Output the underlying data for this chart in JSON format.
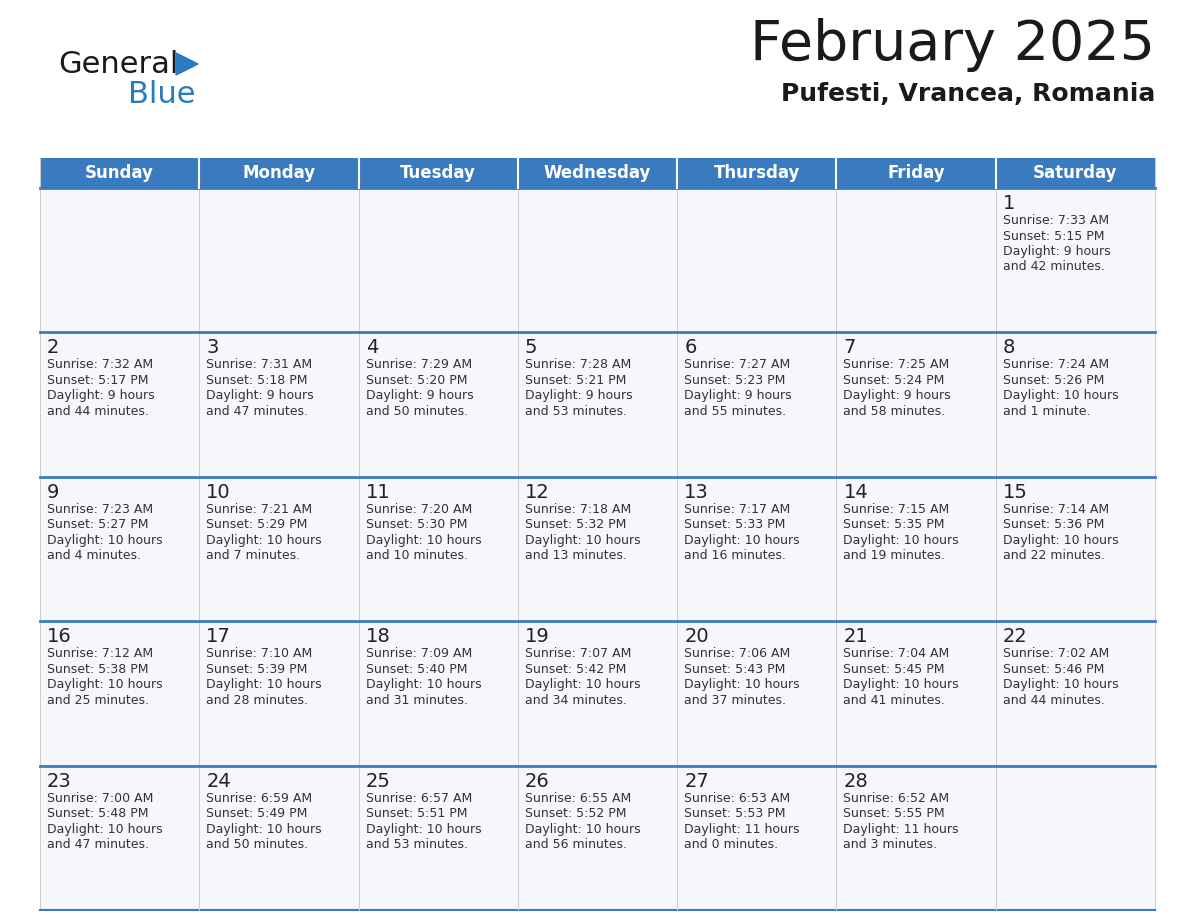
{
  "title": "February 2025",
  "subtitle": "Pufesti, Vrancea, Romania",
  "header_color": "#3a7abf",
  "header_text_color": "#ffffff",
  "cell_bg": "#f5f7fa",
  "text_color": "#333333",
  "day_headers": [
    "Sunday",
    "Monday",
    "Tuesday",
    "Wednesday",
    "Thursday",
    "Friday",
    "Saturday"
  ],
  "weeks": [
    [
      {
        "day": null,
        "sunrise": null,
        "sunset": null,
        "daylight_line1": null,
        "daylight_line2": null
      },
      {
        "day": null,
        "sunrise": null,
        "sunset": null,
        "daylight_line1": null,
        "daylight_line2": null
      },
      {
        "day": null,
        "sunrise": null,
        "sunset": null,
        "daylight_line1": null,
        "daylight_line2": null
      },
      {
        "day": null,
        "sunrise": null,
        "sunset": null,
        "daylight_line1": null,
        "daylight_line2": null
      },
      {
        "day": null,
        "sunrise": null,
        "sunset": null,
        "daylight_line1": null,
        "daylight_line2": null
      },
      {
        "day": null,
        "sunrise": null,
        "sunset": null,
        "daylight_line1": null,
        "daylight_line2": null
      },
      {
        "day": 1,
        "sunrise": "7:33 AM",
        "sunset": "5:15 PM",
        "daylight_line1": "Daylight: 9 hours",
        "daylight_line2": "and 42 minutes."
      }
    ],
    [
      {
        "day": 2,
        "sunrise": "7:32 AM",
        "sunset": "5:17 PM",
        "daylight_line1": "Daylight: 9 hours",
        "daylight_line2": "and 44 minutes."
      },
      {
        "day": 3,
        "sunrise": "7:31 AM",
        "sunset": "5:18 PM",
        "daylight_line1": "Daylight: 9 hours",
        "daylight_line2": "and 47 minutes."
      },
      {
        "day": 4,
        "sunrise": "7:29 AM",
        "sunset": "5:20 PM",
        "daylight_line1": "Daylight: 9 hours",
        "daylight_line2": "and 50 minutes."
      },
      {
        "day": 5,
        "sunrise": "7:28 AM",
        "sunset": "5:21 PM",
        "daylight_line1": "Daylight: 9 hours",
        "daylight_line2": "and 53 minutes."
      },
      {
        "day": 6,
        "sunrise": "7:27 AM",
        "sunset": "5:23 PM",
        "daylight_line1": "Daylight: 9 hours",
        "daylight_line2": "and 55 minutes."
      },
      {
        "day": 7,
        "sunrise": "7:25 AM",
        "sunset": "5:24 PM",
        "daylight_line1": "Daylight: 9 hours",
        "daylight_line2": "and 58 minutes."
      },
      {
        "day": 8,
        "sunrise": "7:24 AM",
        "sunset": "5:26 PM",
        "daylight_line1": "Daylight: 10 hours",
        "daylight_line2": "and 1 minute."
      }
    ],
    [
      {
        "day": 9,
        "sunrise": "7:23 AM",
        "sunset": "5:27 PM",
        "daylight_line1": "Daylight: 10 hours",
        "daylight_line2": "and 4 minutes."
      },
      {
        "day": 10,
        "sunrise": "7:21 AM",
        "sunset": "5:29 PM",
        "daylight_line1": "Daylight: 10 hours",
        "daylight_line2": "and 7 minutes."
      },
      {
        "day": 11,
        "sunrise": "7:20 AM",
        "sunset": "5:30 PM",
        "daylight_line1": "Daylight: 10 hours",
        "daylight_line2": "and 10 minutes."
      },
      {
        "day": 12,
        "sunrise": "7:18 AM",
        "sunset": "5:32 PM",
        "daylight_line1": "Daylight: 10 hours",
        "daylight_line2": "and 13 minutes."
      },
      {
        "day": 13,
        "sunrise": "7:17 AM",
        "sunset": "5:33 PM",
        "daylight_line1": "Daylight: 10 hours",
        "daylight_line2": "and 16 minutes."
      },
      {
        "day": 14,
        "sunrise": "7:15 AM",
        "sunset": "5:35 PM",
        "daylight_line1": "Daylight: 10 hours",
        "daylight_line2": "and 19 minutes."
      },
      {
        "day": 15,
        "sunrise": "7:14 AM",
        "sunset": "5:36 PM",
        "daylight_line1": "Daylight: 10 hours",
        "daylight_line2": "and 22 minutes."
      }
    ],
    [
      {
        "day": 16,
        "sunrise": "7:12 AM",
        "sunset": "5:38 PM",
        "daylight_line1": "Daylight: 10 hours",
        "daylight_line2": "and 25 minutes."
      },
      {
        "day": 17,
        "sunrise": "7:10 AM",
        "sunset": "5:39 PM",
        "daylight_line1": "Daylight: 10 hours",
        "daylight_line2": "and 28 minutes."
      },
      {
        "day": 18,
        "sunrise": "7:09 AM",
        "sunset": "5:40 PM",
        "daylight_line1": "Daylight: 10 hours",
        "daylight_line2": "and 31 minutes."
      },
      {
        "day": 19,
        "sunrise": "7:07 AM",
        "sunset": "5:42 PM",
        "daylight_line1": "Daylight: 10 hours",
        "daylight_line2": "and 34 minutes."
      },
      {
        "day": 20,
        "sunrise": "7:06 AM",
        "sunset": "5:43 PM",
        "daylight_line1": "Daylight: 10 hours",
        "daylight_line2": "and 37 minutes."
      },
      {
        "day": 21,
        "sunrise": "7:04 AM",
        "sunset": "5:45 PM",
        "daylight_line1": "Daylight: 10 hours",
        "daylight_line2": "and 41 minutes."
      },
      {
        "day": 22,
        "sunrise": "7:02 AM",
        "sunset": "5:46 PM",
        "daylight_line1": "Daylight: 10 hours",
        "daylight_line2": "and 44 minutes."
      }
    ],
    [
      {
        "day": 23,
        "sunrise": "7:00 AM",
        "sunset": "5:48 PM",
        "daylight_line1": "Daylight: 10 hours",
        "daylight_line2": "and 47 minutes."
      },
      {
        "day": 24,
        "sunrise": "6:59 AM",
        "sunset": "5:49 PM",
        "daylight_line1": "Daylight: 10 hours",
        "daylight_line2": "and 50 minutes."
      },
      {
        "day": 25,
        "sunrise": "6:57 AM",
        "sunset": "5:51 PM",
        "daylight_line1": "Daylight: 10 hours",
        "daylight_line2": "and 53 minutes."
      },
      {
        "day": 26,
        "sunrise": "6:55 AM",
        "sunset": "5:52 PM",
        "daylight_line1": "Daylight: 10 hours",
        "daylight_line2": "and 56 minutes."
      },
      {
        "day": 27,
        "sunrise": "6:53 AM",
        "sunset": "5:53 PM",
        "daylight_line1": "Daylight: 11 hours",
        "daylight_line2": "and 0 minutes."
      },
      {
        "day": 28,
        "sunrise": "6:52 AM",
        "sunset": "5:55 PM",
        "daylight_line1": "Daylight: 11 hours",
        "daylight_line2": "and 3 minutes."
      },
      {
        "day": null,
        "sunrise": null,
        "sunset": null,
        "daylight_line1": null,
        "daylight_line2": null
      }
    ]
  ],
  "logo_general_color": "#1a1a1a",
  "logo_blue_color": "#2a7abf",
  "logo_triangle_color": "#2a7abf",
  "week_separator_color": "#3a7abf",
  "cell_border_color": "#cccccc",
  "title_fontsize": 40,
  "subtitle_fontsize": 18,
  "dayname_fontsize": 12,
  "daynum_fontsize": 14,
  "cell_text_fontsize": 9
}
